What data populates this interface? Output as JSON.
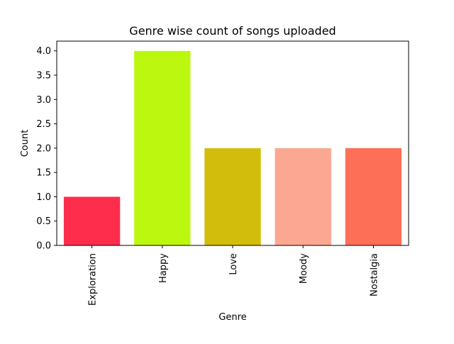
{
  "chart_data": {
    "type": "bar",
    "title": "Genre wise count of songs uploaded",
    "xlabel": "Genre",
    "ylabel": "Count",
    "categories": [
      "Exploration",
      "Happy",
      "Love",
      "Moody",
      "Nostalgia"
    ],
    "values": [
      1,
      4,
      2,
      2,
      2
    ],
    "colors": [
      "#fe2d4b",
      "#bcf80f",
      "#d3bd0c",
      "#fca791",
      "#fe6f58"
    ],
    "ylim": [
      0,
      4.2
    ],
    "yticks": [
      "0.0",
      "0.5",
      "1.0",
      "1.5",
      "2.0",
      "2.5",
      "3.0",
      "3.5",
      "4.0"
    ],
    "grid": false,
    "legend": "none"
  }
}
